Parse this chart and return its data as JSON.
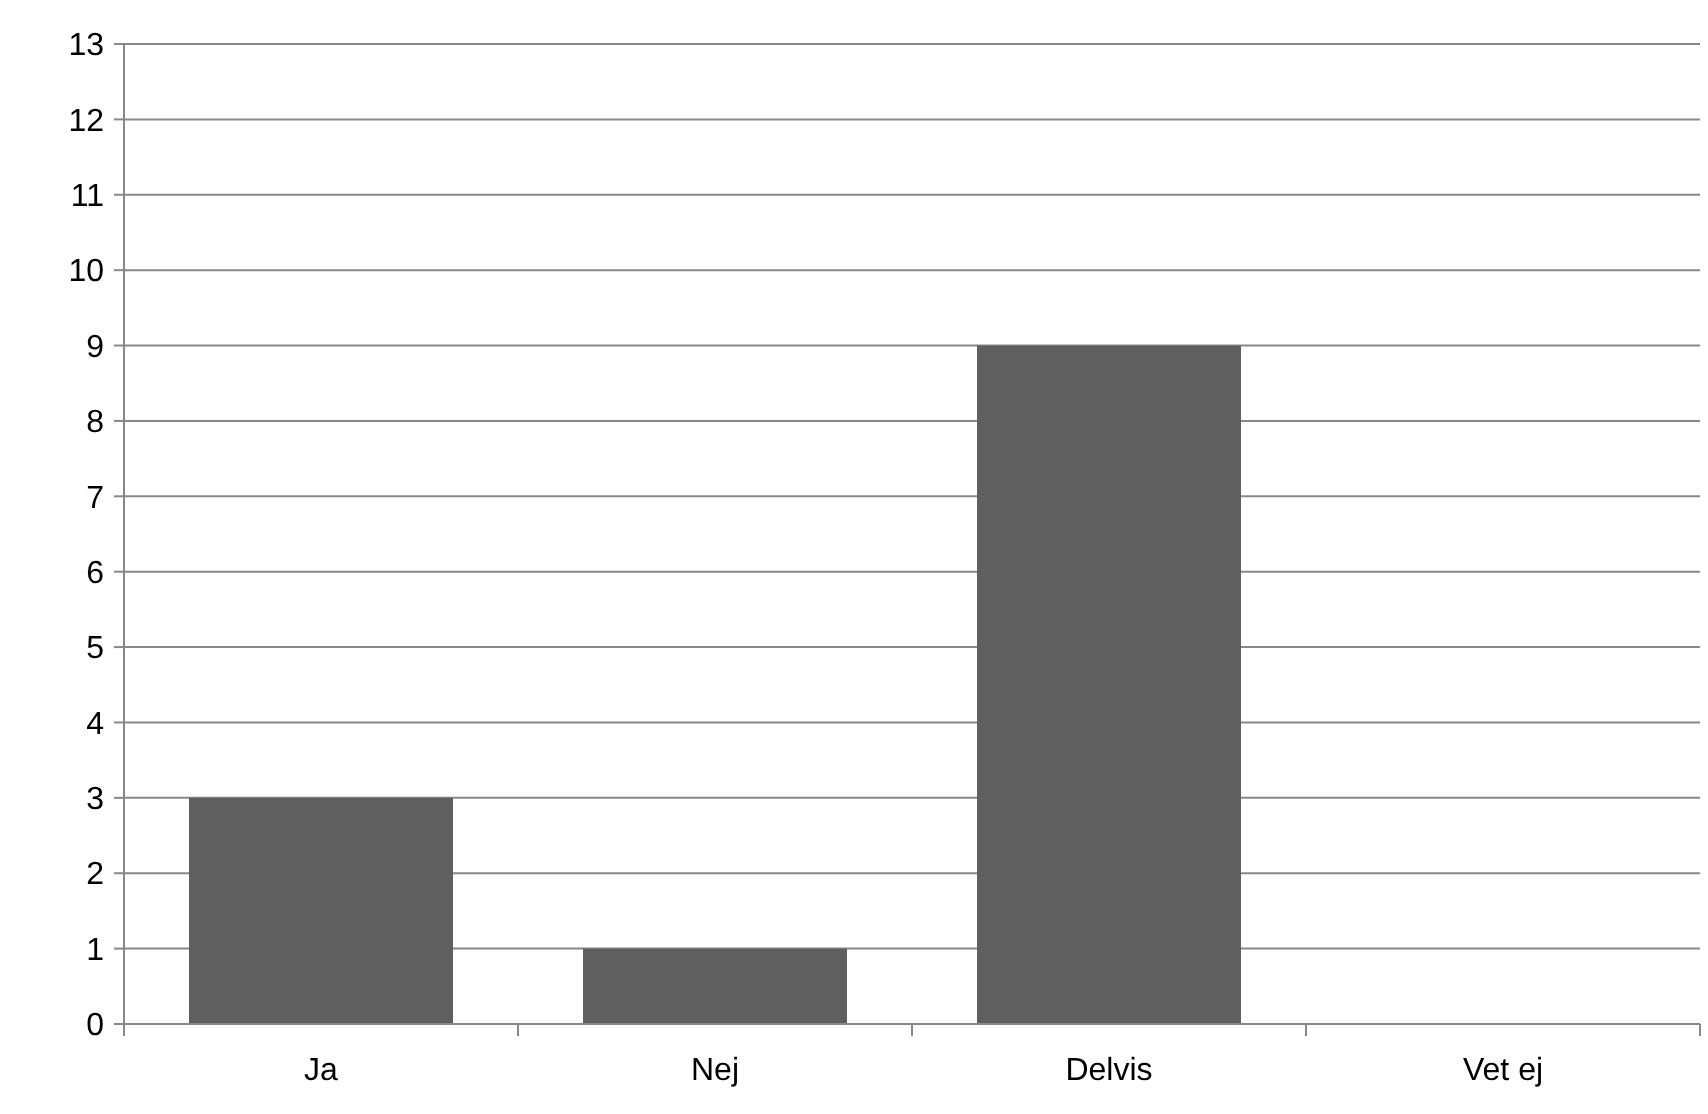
{
  "chart_data": {
    "type": "bar",
    "categories": [
      "Ja",
      "Nej",
      "Delvis",
      "Vet ej"
    ],
    "values": [
      3,
      1,
      9,
      0
    ],
    "color": "#5f5f5f",
    "ylim": [
      0,
      13
    ],
    "yticks": [
      0,
      1,
      2,
      3,
      4,
      5,
      6,
      7,
      8,
      9,
      10,
      11,
      12,
      13
    ],
    "grid": "y"
  }
}
